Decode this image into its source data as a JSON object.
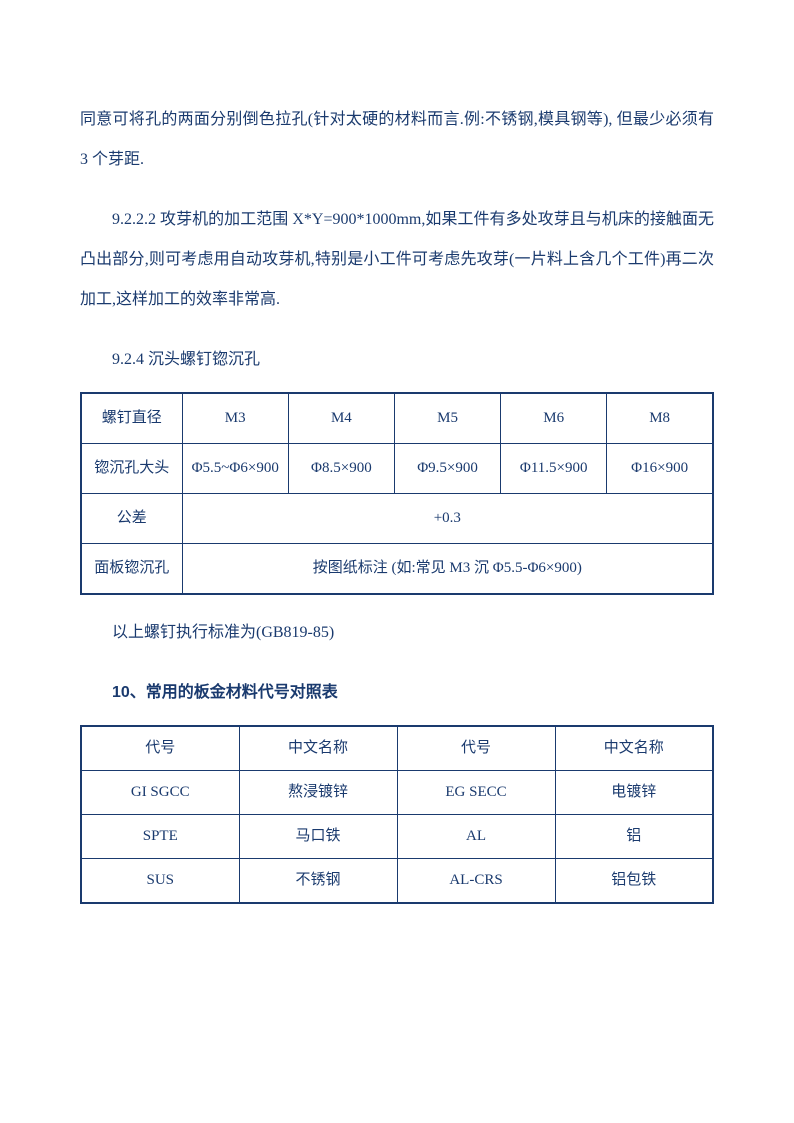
{
  "para1": "同意可将孔的两面分别倒色拉孔(针对太硬的材料而言.例:不锈钢,模具钢等), 但最少必须有 3 个芽距.",
  "para2": "9.2.2.2 攻芽机的加工范围 X*Y=900*1000mm,如果工件有多处攻芽且与机床的接触面无凸出部分,则可考虑用自动攻芽机,特别是小工件可考虑先攻芽(一片料上含几个工件)再二次加工,这样加工的效率非常高.",
  "heading1": "9.2.4 沉头螺钉锪沉孔",
  "table1": {
    "row1": {
      "label": "螺钉直径",
      "c1": "M3",
      "c2": "M4",
      "c3": "M5",
      "c4": "M6",
      "c5": "M8"
    },
    "row2": {
      "label": "锪沉孔大头",
      "c1": "Φ5.5~Φ6×900",
      "c2": "Φ8.5×900",
      "c3": "Φ9.5×900",
      "c4": "Φ11.5×900",
      "c5": "Φ16×900"
    },
    "row3": {
      "label": "公差",
      "merged": "+0.3"
    },
    "row4": {
      "label": "面板锪沉孔",
      "merged": "按图纸标注 (如:常见 M3 沉 Φ5.5-Φ6×900)"
    }
  },
  "note1": "以上螺钉执行标准为(GB819-85)",
  "heading2": "10、常用的板金材料代号对照表",
  "table2": {
    "header": {
      "c1": "代号",
      "c2": "中文名称",
      "c3": "代号",
      "c4": "中文名称"
    },
    "row1": {
      "c1": "GI SGCC",
      "c2": "熬浸镀锌",
      "c3": "EG SECC",
      "c4": "电镀锌"
    },
    "row2": {
      "c1": "SPTE",
      "c2": "马口铁",
      "c3": "AL",
      "c4": "铝"
    },
    "row3": {
      "c1": "SUS",
      "c2": "不锈钢",
      "c3": "AL-CRS",
      "c4": "铝包铁"
    }
  }
}
